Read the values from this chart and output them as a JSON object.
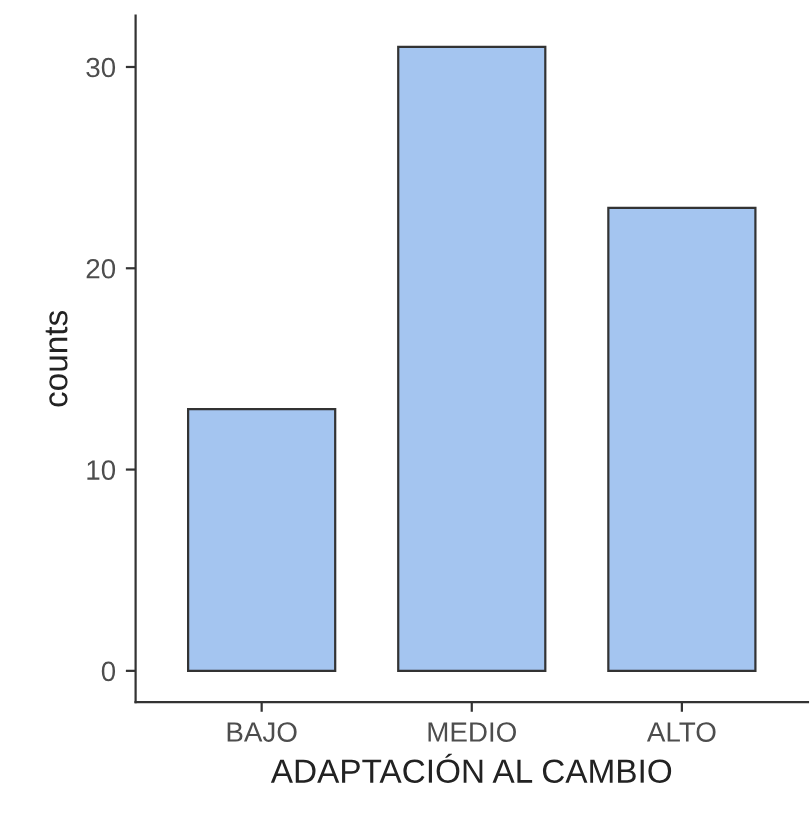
{
  "chart_data": {
    "type": "bar",
    "xlabel": "ADAPTACIÓN AL CAMBIO",
    "ylabel": "counts",
    "categories": [
      "BAJO",
      "MEDIO",
      "ALTO"
    ],
    "values": [
      13,
      31,
      23
    ],
    "color": "#a4c5f0",
    "ylim": [
      -1.55,
      32.55
    ],
    "yticks": [
      0,
      10,
      20,
      30
    ],
    "grid": false,
    "legend": false
  }
}
